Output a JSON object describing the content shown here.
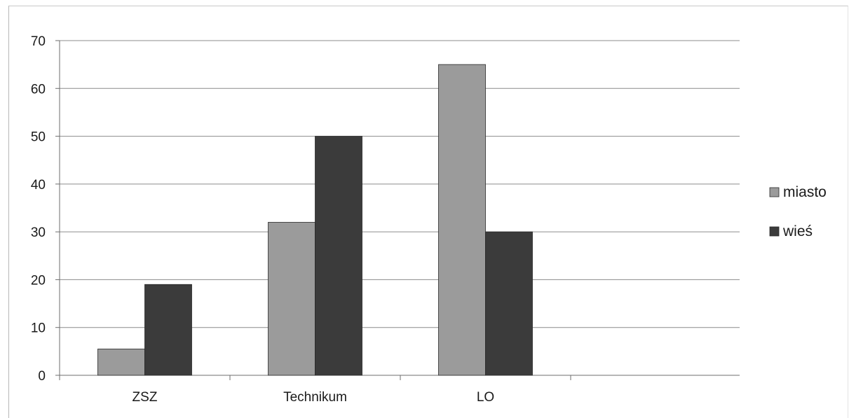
{
  "chart_data": {
    "type": "bar",
    "title": "",
    "xlabel": "",
    "ylabel": "",
    "categories": [
      "ZSZ",
      "Technikum",
      "LO"
    ],
    "series": [
      {
        "name": "miasto",
        "values": [
          5.5,
          32,
          65
        ],
        "color": "#9b9b9b"
      },
      {
        "name": "wieś",
        "values": [
          19,
          50,
          30
        ],
        "color": "#3b3b3b"
      }
    ],
    "ylim": [
      0,
      70
    ],
    "yticks": [
      0,
      10,
      20,
      30,
      40,
      50,
      60,
      70
    ],
    "grid": true,
    "legend_position": "right"
  }
}
